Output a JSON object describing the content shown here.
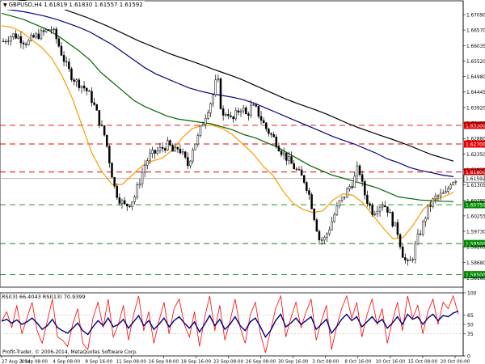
{
  "header": {
    "symbol_tf": "GBPUSD,H4",
    "ohlc": "1.61819 1.61830 1.61557 1.61592"
  },
  "rsi_header": "RSI(3) 66.4043 RSI(13) 70.9399",
  "copyright": "Profit-Trader, © 2006-2014, MetaQuotes Software Corp.",
  "colors": {
    "background": "#ffffff",
    "candle": "#000000",
    "resistance": "#e60000",
    "support": "#008c00",
    "current_price": "#b4b4b4",
    "sma_fast": "#ff9900",
    "sma_mid": "#006400",
    "sma_slow": "#000080",
    "sma_long": "#000000",
    "rsi_fast": "#ff0000",
    "rsi_slow": "#000080"
  },
  "chart_data": [
    {
      "type": "candlestick",
      "title": "GBPUSD,H4",
      "ylim": [
        1.581,
        1.673
      ],
      "price_axis_ticks": [
        "1.67090",
        "1.66570",
        "1.66035",
        "1.65520",
        "1.64980",
        "1.64445",
        "1.63920",
        "1.63400",
        "1.62880",
        "1.62350",
        "1.61830",
        "1.61305",
        "1.60780",
        "1.60255",
        "1.59730",
        "1.59205",
        "1.58680",
        "1.58160"
      ],
      "time_labels": [
        "27 Aug 2014",
        "1 Sep 08:00",
        "4 Sep 08:00",
        "8 Sep 16:00",
        "11 Sep 08:00",
        "16 Sep 08:00",
        "18 Sep 16:00",
        "23 Sep 08:00",
        "26 Sep 08:00",
        "30 Sep 16:00",
        "3 Oct 08:00",
        "8 Oct 16:00",
        "10 Oct 16:00",
        "15 Oct 08:00",
        "20 Oct 00:00"
      ],
      "horizontal_levels": [
        {
          "label": "1.63300",
          "value": 1.633,
          "kind": "resistance"
        },
        {
          "label": "1.62700",
          "value": 1.627,
          "kind": "resistance"
        },
        {
          "label": "1.61800",
          "value": 1.618,
          "kind": "resistance"
        },
        {
          "label": "1.61592",
          "value": 1.61592,
          "kind": "current"
        },
        {
          "label": "1.60750",
          "value": 1.6075,
          "kind": "support"
        },
        {
          "label": "1.59500",
          "value": 1.595,
          "kind": "support"
        },
        {
          "label": "1.58500",
          "value": 1.585,
          "kind": "support"
        }
      ],
      "close_path": [
        1.66,
        1.6612,
        1.662,
        1.6615,
        1.6603,
        1.6595,
        1.661,
        1.6618,
        1.6625,
        1.6635,
        1.664,
        1.6605,
        1.656,
        1.652,
        1.649,
        1.647,
        1.646,
        1.6445,
        1.642,
        1.638,
        1.633,
        1.629,
        1.62,
        1.612,
        1.609,
        1.607,
        1.608,
        1.61,
        1.615,
        1.62,
        1.623,
        1.624,
        1.625,
        1.626,
        1.627,
        1.624,
        1.626,
        1.623,
        1.62,
        1.626,
        1.629,
        1.634,
        1.638,
        1.642,
        1.649,
        1.635,
        1.638,
        1.634,
        1.637,
        1.639,
        1.636,
        1.639,
        1.638,
        1.635,
        1.632,
        1.63,
        1.628,
        1.625,
        1.623,
        1.621,
        1.619,
        1.617,
        1.615,
        1.61,
        1.603,
        1.596,
        1.5965,
        1.6,
        1.604,
        1.608,
        1.61,
        1.613,
        1.615,
        1.62,
        1.612,
        1.608,
        1.605,
        1.607,
        1.608,
        1.606,
        1.602,
        1.599,
        1.592,
        1.588,
        1.59,
        1.596,
        1.6,
        1.605,
        1.608,
        1.61,
        1.6105,
        1.611,
        1.615,
        1.6159
      ],
      "moving_averages": [
        {
          "name": "",
          "color": "#ff9900",
          "values": [
            1.665,
            1.6645,
            1.663,
            1.6605,
            1.658,
            1.6545,
            1.649,
            1.642,
            1.633,
            1.624,
            1.618,
            1.614,
            1.614,
            1.617,
            1.62,
            1.6215,
            1.6225,
            1.625,
            1.629,
            1.632,
            1.633,
            1.633,
            1.632,
            1.63,
            1.627,
            1.624,
            1.62,
            1.617,
            1.612,
            1.608,
            1.606,
            1.605,
            1.6055,
            1.609,
            1.611,
            1.6105,
            1.608,
            1.604,
            1.6,
            1.5965,
            1.597,
            1.601,
            1.606,
            1.609,
            1.61,
            1.6115
          ]
        },
        {
          "name": "",
          "color": "#006400",
          "values": [
            1.669,
            1.668,
            1.667,
            1.6655,
            1.664,
            1.662,
            1.6595,
            1.657,
            1.654,
            1.65,
            1.647,
            1.644,
            1.641,
            1.639,
            1.6375,
            1.636,
            1.635,
            1.6345,
            1.634,
            1.6335,
            1.6325,
            1.6315,
            1.63,
            1.629,
            1.6275,
            1.626,
            1.624,
            1.622,
            1.62,
            1.6185,
            1.617,
            1.616,
            1.615,
            1.614,
            1.613,
            1.6115,
            1.61,
            1.6095,
            1.609,
            1.6088,
            1.6086,
            1.6085
          ]
        },
        {
          "name": "",
          "color": "#000080",
          "values": [
            1.6705,
            1.67,
            1.6695,
            1.6688,
            1.668,
            1.667,
            1.6658,
            1.6645,
            1.663,
            1.661,
            1.659,
            1.6565,
            1.654,
            1.6515,
            1.6495,
            1.648,
            1.6465,
            1.645,
            1.644,
            1.6432,
            1.6426,
            1.642,
            1.6412,
            1.64,
            1.6385,
            1.637,
            1.6355,
            1.634,
            1.6325,
            1.631,
            1.6295,
            1.6282,
            1.627,
            1.6255,
            1.624,
            1.6222,
            1.621,
            1.6195,
            1.6185,
            1.6178,
            1.617,
            1.6165
          ]
        },
        {
          "name": "",
          "color": "#000000",
          "values": [
            1.674,
            1.6736,
            1.6732,
            1.6726,
            1.672,
            1.6712,
            1.6702,
            1.669,
            1.6678,
            1.6664,
            1.665,
            1.6634,
            1.6618,
            1.6602,
            1.6588,
            1.6574,
            1.656,
            1.6548,
            1.6537,
            1.6525,
            1.6512,
            1.65,
            1.6488,
            1.6475,
            1.646,
            1.6445,
            1.643,
            1.6415,
            1.6402,
            1.639,
            1.6378,
            1.6365,
            1.635,
            1.6335,
            1.6322,
            1.631,
            1.6298,
            1.6287,
            1.6275,
            1.6262,
            1.6248,
            1.6235,
            1.6225,
            1.6215
          ]
        }
      ]
    },
    {
      "type": "line",
      "title": "RSI(3) 66.4043 RSI(13) 70.9399",
      "ylim": [
        0,
        100
      ],
      "y_ticks": [
        100,
        65,
        50,
        35,
        0
      ],
      "series": [
        {
          "name": "RSI(3)",
          "color": "#ff0000",
          "values": [
            55,
            70,
            45,
            80,
            35,
            60,
            85,
            40,
            20,
            55,
            90,
            30,
            25,
            15,
            50,
            75,
            20,
            10,
            60,
            85,
            45,
            90,
            30,
            50,
            80,
            25,
            65,
            95,
            40,
            70,
            20,
            55,
            85,
            35,
            75,
            90,
            50,
            30,
            70,
            15,
            60,
            95,
            40,
            80,
            25,
            55,
            90,
            45,
            20,
            65,
            85,
            35,
            5,
            40,
            75,
            95,
            30,
            60,
            85,
            45,
            70,
            90,
            25,
            55,
            80,
            10,
            45,
            75,
            95,
            60,
            85,
            30,
            65,
            90,
            50,
            75,
            20,
            55,
            85,
            40,
            95,
            60,
            80,
            35,
            70,
            90,
            50,
            85,
            75,
            95,
            66
          ]
        },
        {
          "name": "RSI(13)",
          "color": "#000080",
          "values": [
            55,
            58,
            52,
            57,
            50,
            54,
            60,
            52,
            42,
            48,
            58,
            45,
            40,
            36,
            44,
            52,
            40,
            34,
            46,
            56,
            48,
            60,
            46,
            50,
            58,
            44,
            54,
            64,
            48,
            56,
            42,
            50,
            60,
            46,
            56,
            62,
            52,
            44,
            54,
            38,
            50,
            64,
            48,
            58,
            42,
            50,
            62,
            48,
            40,
            54,
            60,
            46,
            30,
            40,
            56,
            66,
            46,
            52,
            60,
            50,
            56,
            62,
            42,
            50,
            58,
            36,
            46,
            58,
            66,
            56,
            62,
            46,
            54,
            62,
            52,
            58,
            44,
            52,
            62,
            50,
            66,
            58,
            62,
            50,
            60,
            66,
            56,
            64,
            62,
            68,
            71
          ]
        }
      ]
    }
  ]
}
